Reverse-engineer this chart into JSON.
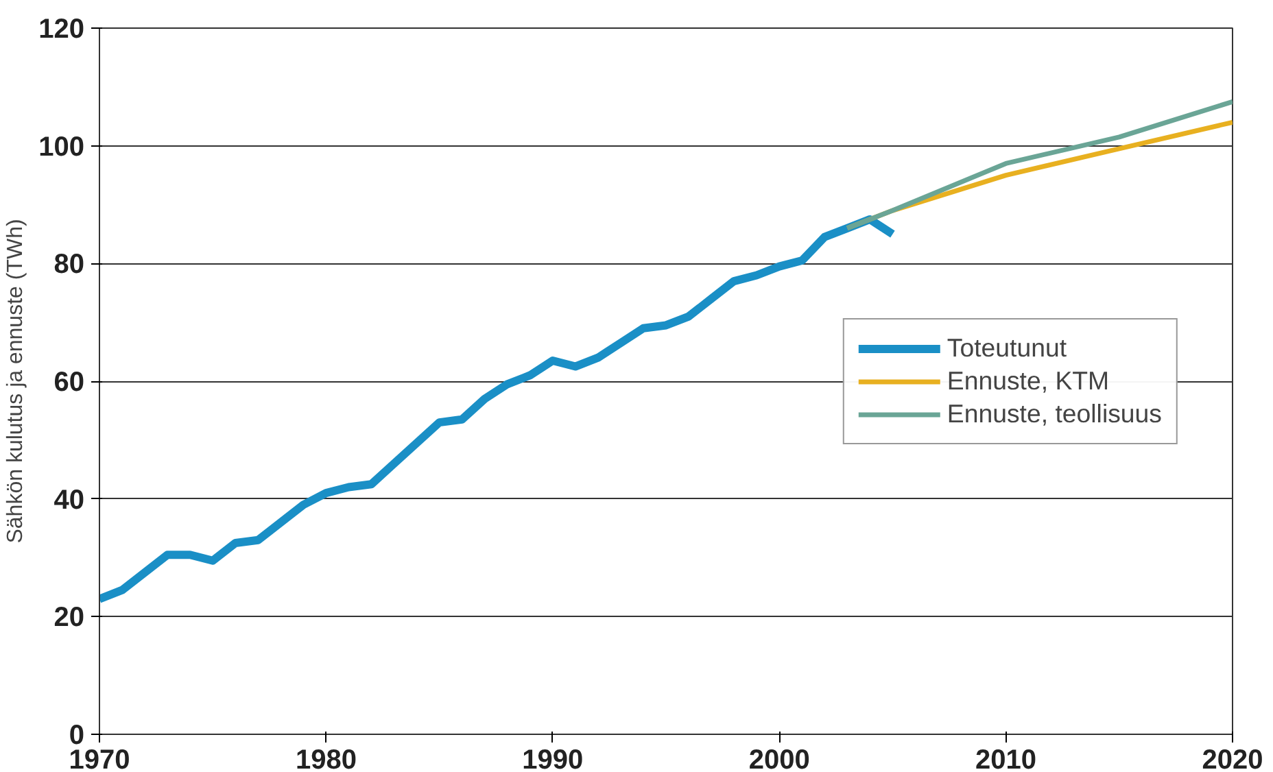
{
  "chart_data": {
    "type": "line",
    "ylabel": "Sähkön kulutus ja ennuste (TWh)",
    "xlim": [
      1970,
      2020
    ],
    "xticks": [
      1970,
      1980,
      1990,
      2000,
      2010,
      2020
    ],
    "ylim": [
      0,
      120
    ],
    "yticks": [
      0,
      20,
      40,
      60,
      80,
      100,
      120
    ],
    "grid": "y",
    "legend": "right",
    "marker": "none",
    "line_style": "solid",
    "series": [
      {
        "name": "Toteutunut",
        "color": "#1a8fc6",
        "x": [
          1970,
          1971,
          1972,
          1973,
          1974,
          1975,
          1976,
          1977,
          1978,
          1979,
          1980,
          1981,
          1982,
          1983,
          1984,
          1985,
          1986,
          1987,
          1988,
          1989,
          1990,
          1991,
          1992,
          1993,
          1994,
          1995,
          1996,
          1997,
          1998,
          1999,
          2000,
          2001,
          2002,
          2003,
          2004,
          2005
        ],
        "values": [
          23,
          24.5,
          27.5,
          30.5,
          30.5,
          29.5,
          32.5,
          33,
          36,
          39,
          41,
          42,
          42.5,
          46,
          49.5,
          53,
          53.5,
          57,
          59.5,
          61,
          63.5,
          62.5,
          64,
          66.5,
          69,
          69.5,
          71,
          74,
          77,
          78,
          79.5,
          80.5,
          84.5,
          86,
          87.5,
          85
        ]
      },
      {
        "name": "Ennuste, KTM",
        "color": "#e8b020",
        "x": [
          2003,
          2005,
          2010,
          2015,
          2020
        ],
        "values": [
          86,
          89,
          95,
          99.5,
          104
        ]
      },
      {
        "name": "Ennuste, teollisuus",
        "color": "#6aa596",
        "x": [
          2003,
          2005,
          2010,
          2015,
          2020
        ],
        "values": [
          86,
          89,
          97,
          101.5,
          107.5
        ]
      }
    ]
  }
}
